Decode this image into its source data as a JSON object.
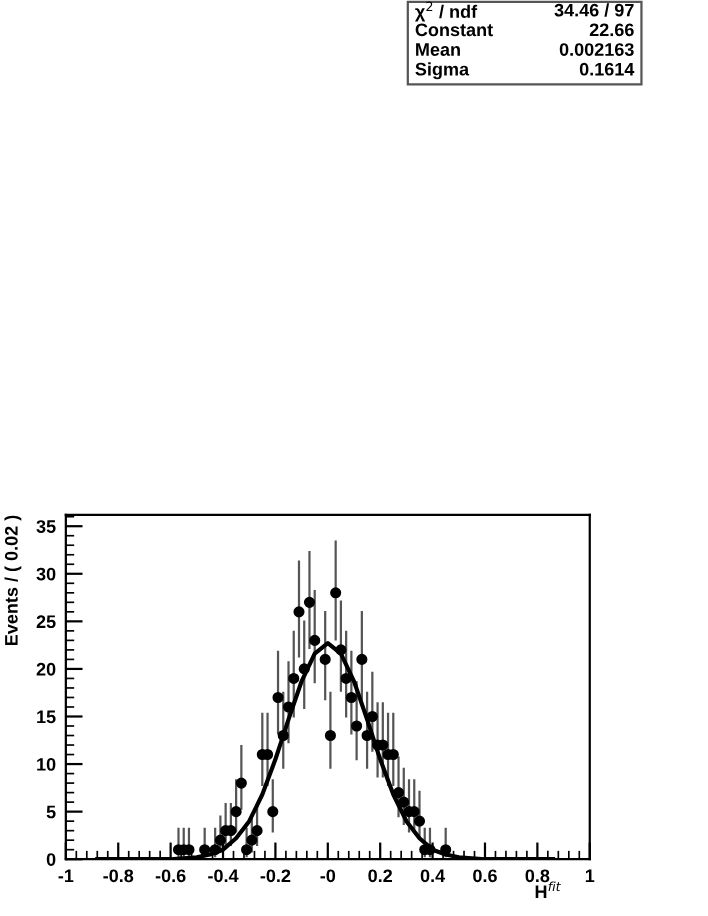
{
  "chart_data": {
    "type": "scatter",
    "xlabel": "H$^{fit}$",
    "ylabel": "Events / ( 0.02 )",
    "annotations": [
      "χ$^{2}$ / ndf",
      "34.46 / 97",
      "Constant",
      "22.66",
      "Mean",
      "0.002163",
      "Sigma",
      "0.1614"
    ],
    "xlim": [
      -1,
      1
    ],
    "ylim": [
      0,
      36.2
    ],
    "xticks": [
      -1,
      -0.8,
      -0.6,
      -0.4,
      -0.2,
      {
        "value": 0,
        "label": "-0"
      },
      0.2,
      0.4,
      0.6,
      0.8,
      1
    ],
    "yticks": [
      0,
      5,
      10,
      15,
      20,
      25,
      30,
      35
    ],
    "grid": false,
    "legend": false,
    "series": [
      {
        "color": "#000000",
        "marker": "circle",
        "x": [
          -0.57,
          -0.55,
          -0.53,
          -0.47,
          -0.43,
          -0.41,
          -0.39,
          -0.37,
          -0.35,
          -0.33,
          -0.31,
          -0.29,
          -0.27,
          -0.25,
          -0.23,
          -0.21,
          -0.19,
          -0.17,
          -0.15,
          -0.13,
          -0.11,
          -0.09,
          -0.07,
          -0.05,
          -0.01,
          0.01,
          0.03,
          0.05,
          0.07,
          0.09,
          0.11,
          0.13,
          0.15,
          0.17,
          0.19,
          0.21,
          0.23,
          0.25,
          0.27,
          0.29,
          0.31,
          0.33,
          0.35,
          0.37,
          0.39,
          0.45
        ],
        "values": [
          1,
          1,
          1,
          1,
          1,
          2,
          3,
          3,
          5,
          8,
          1,
          2,
          3,
          11,
          11,
          5,
          17,
          13,
          16,
          19,
          26,
          20,
          27,
          23,
          21,
          13,
          28,
          22,
          19,
          17,
          14,
          21,
          13,
          15,
          12,
          12,
          11,
          11,
          7,
          6,
          5,
          5,
          4,
          1,
          1,
          1
        ],
        "errors": [
          [
            0.2,
            3.3
          ],
          [
            0.2,
            3.3
          ],
          [
            0.2,
            3.3
          ],
          [
            0.2,
            3.3
          ],
          [
            0.2,
            3.3
          ],
          [
            0.7,
            4.6
          ],
          [
            1.4,
            5.9
          ],
          [
            1.4,
            5.9
          ],
          [
            2.8,
            8.4
          ],
          [
            5.2,
            12.0
          ],
          [
            0.2,
            3.3
          ],
          [
            0.7,
            4.6
          ],
          [
            1.4,
            5.9
          ],
          [
            7.7,
            15.4
          ],
          [
            7.7,
            15.4
          ],
          [
            2.8,
            8.4
          ],
          [
            13.1,
            21.9
          ],
          [
            9.5,
            17.6
          ],
          [
            12.2,
            20.8
          ],
          [
            14.9,
            24.0
          ],
          [
            21.2,
            31.4
          ],
          [
            15.8,
            25.1
          ],
          [
            22.1,
            32.4
          ],
          [
            18.5,
            28.3
          ],
          [
            16.7,
            26.1
          ],
          [
            9.5,
            17.6
          ],
          [
            23.0,
            33.5
          ],
          [
            17.6,
            27.2
          ],
          [
            14.9,
            24.0
          ],
          [
            13.1,
            21.9
          ],
          [
            10.4,
            18.7
          ],
          [
            16.7,
            26.1
          ],
          [
            9.5,
            17.6
          ],
          [
            11.3,
            19.7
          ],
          [
            8.6,
            16.5
          ],
          [
            8.6,
            16.5
          ],
          [
            7.7,
            15.4
          ],
          [
            7.7,
            15.4
          ],
          [
            4.4,
            10.8
          ],
          [
            3.6,
            9.6
          ],
          [
            2.8,
            8.4
          ],
          [
            2.8,
            8.4
          ],
          [
            2.1,
            7.2
          ],
          [
            0.2,
            3.3
          ],
          [
            0.2,
            3.3
          ],
          [
            0.2,
            3.3
          ]
        ]
      },
      {
        "type": "line",
        "color": "#000000",
        "line_style": "solid",
        "x": [
          -0.88,
          -0.6,
          -0.5,
          -0.45,
          -0.4,
          -0.35,
          -0.3,
          -0.25,
          -0.2,
          -0.15,
          -0.1,
          -0.05,
          0,
          0.05,
          0.1,
          0.15,
          0.2,
          0.25,
          0.3,
          0.35,
          0.4,
          0.45,
          0.5,
          0.6,
          0.86
        ],
        "values": [
          0,
          0,
          0.2,
          0.5,
          1.0,
          2.2,
          4.0,
          6.8,
          10.5,
          14.7,
          18.7,
          21.6,
          22.7,
          21.6,
          18.7,
          14.7,
          10.5,
          6.8,
          4.0,
          2.2,
          1.0,
          0.5,
          0.2,
          0,
          0
        ]
      }
    ]
  }
}
